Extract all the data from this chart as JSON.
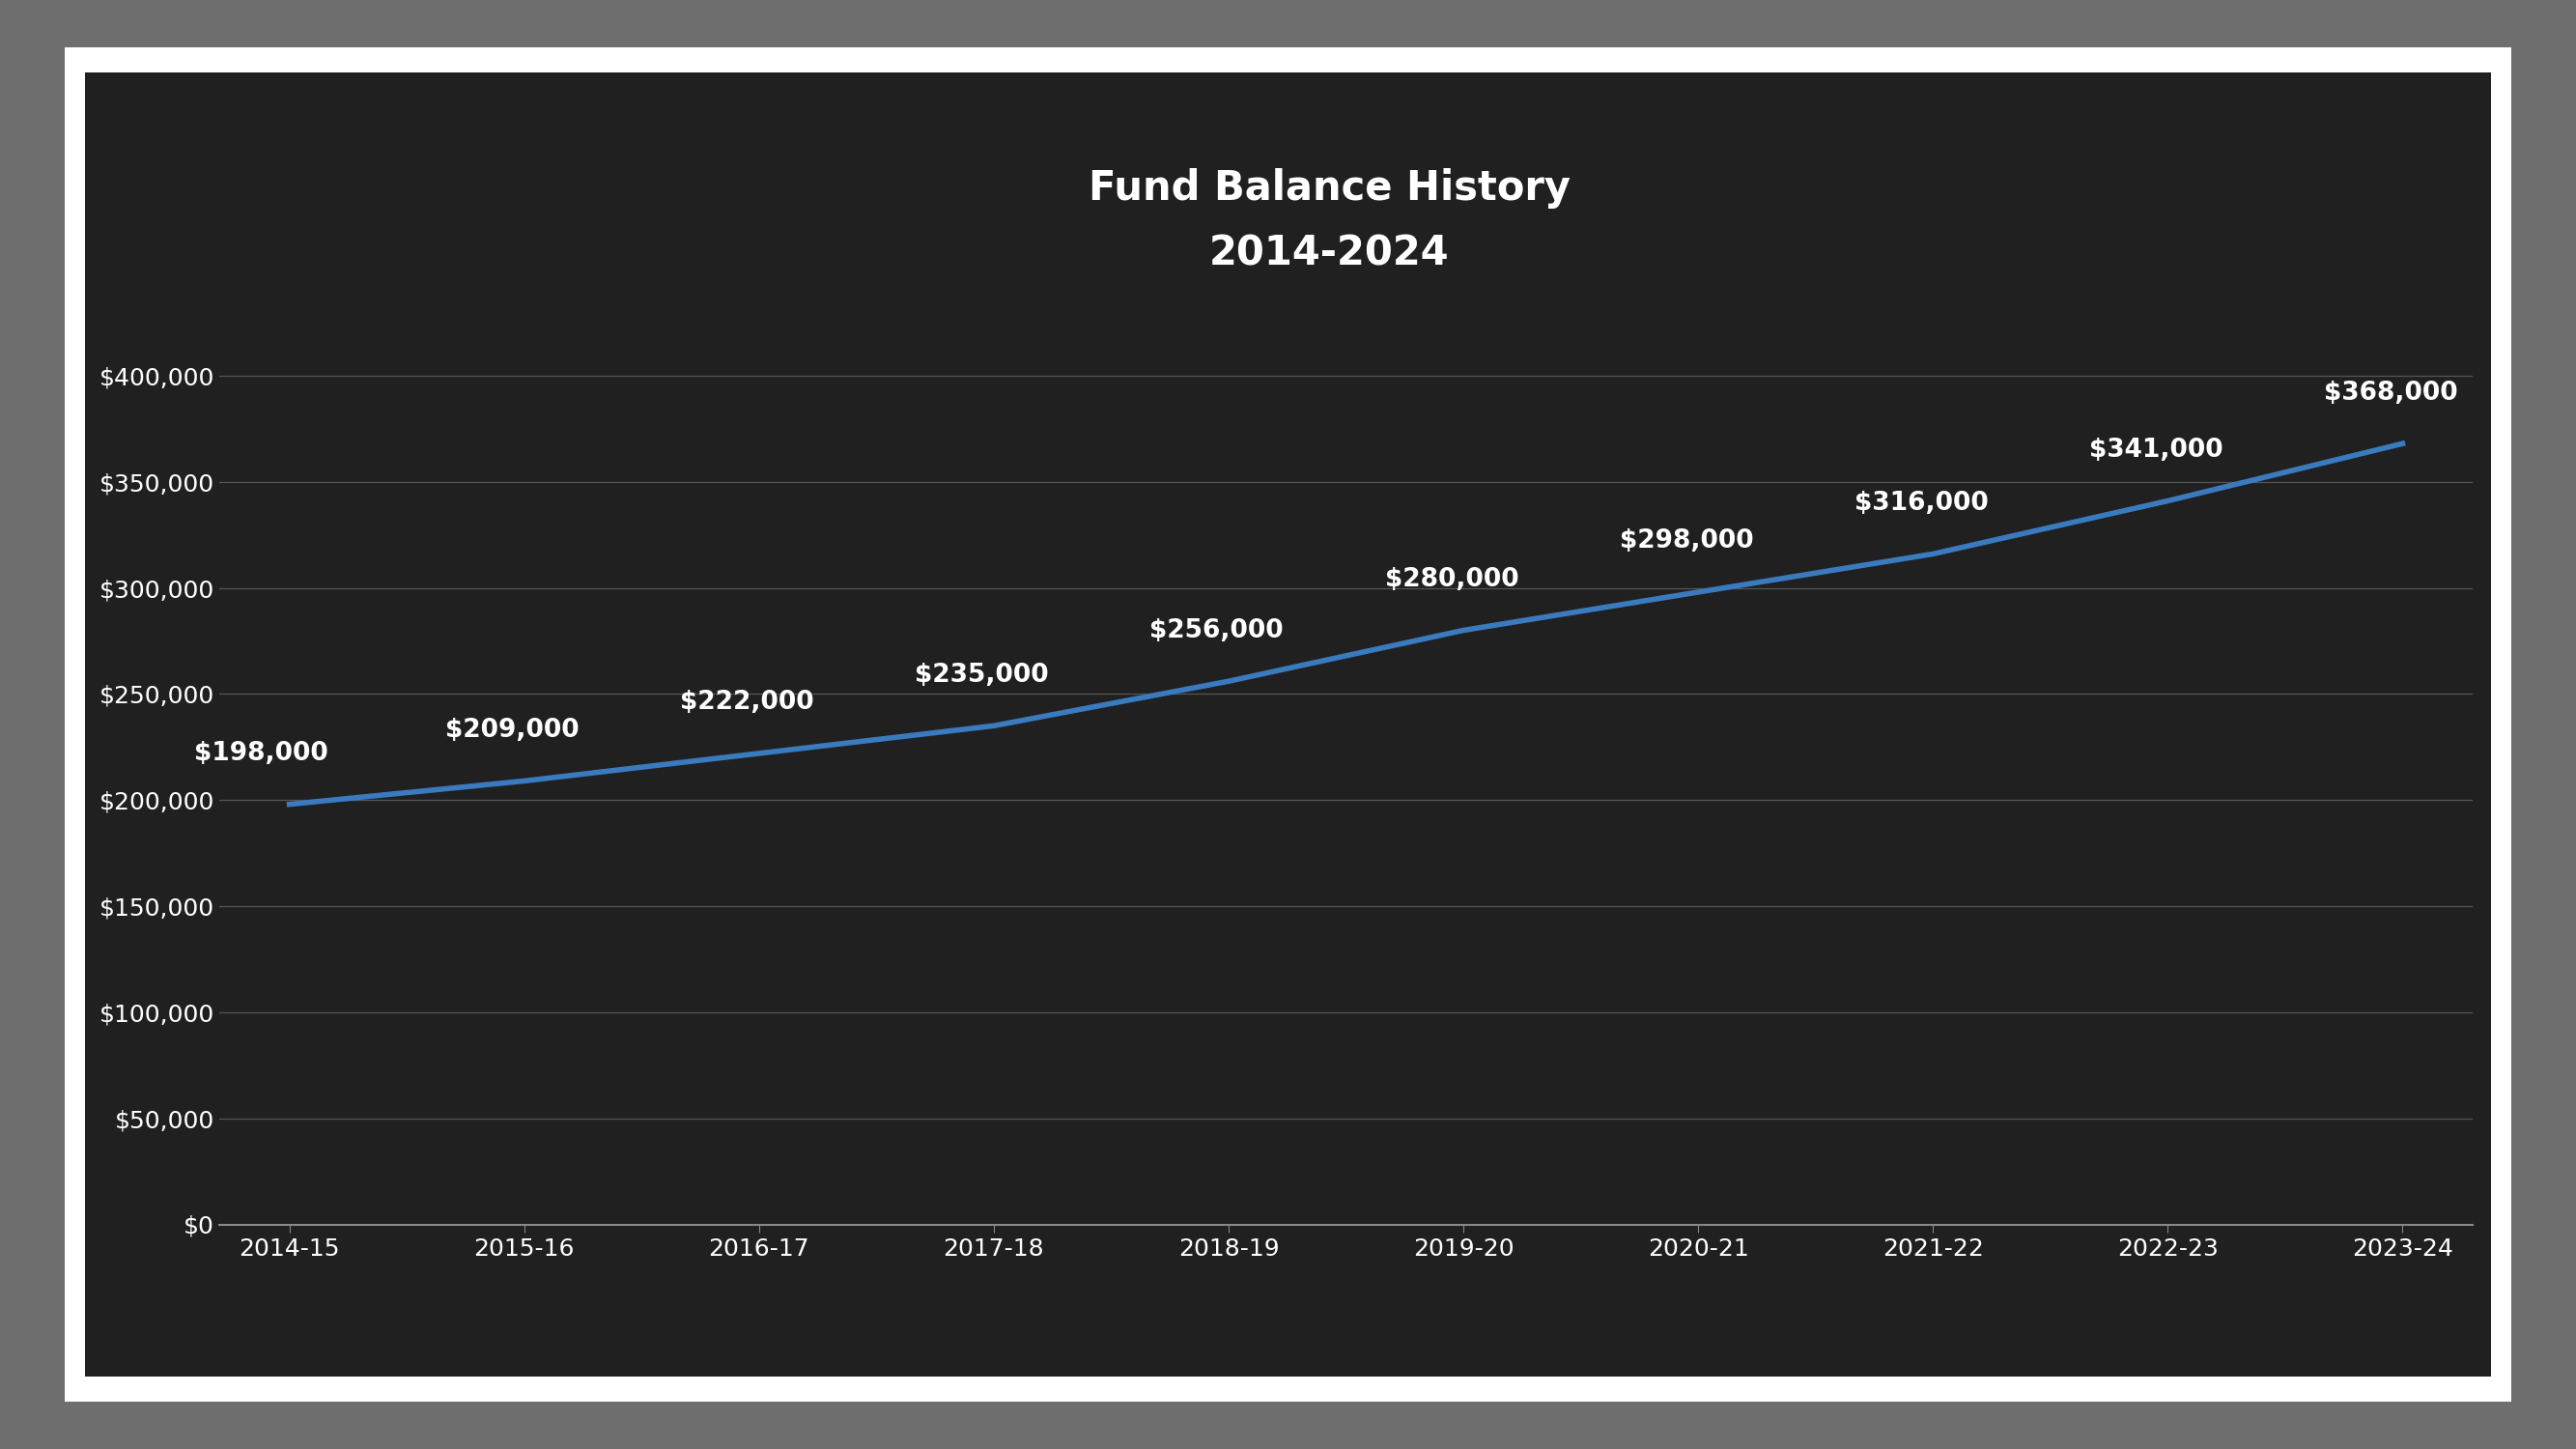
{
  "title_line1": "Fund Balance History",
  "title_line2": "2014-2024",
  "categories": [
    "2014-15",
    "2015-16",
    "2016-17",
    "2017-18",
    "2018-19",
    "2019-20",
    "2020-21",
    "2021-22",
    "2022-23",
    "2023-24"
  ],
  "values": [
    198000,
    209000,
    222000,
    235000,
    256000,
    280000,
    298000,
    316000,
    341000,
    368000
  ],
  "labels": [
    "$198,000",
    "$209,000",
    "$222,000",
    "$235,000",
    "$256,000",
    "$280,000",
    "$298,000",
    "$316,000",
    "$341,000",
    "$368,000"
  ],
  "line_color": "#3a7abf",
  "line_width": 4,
  "dark_bg_color": "#202020",
  "white_border_color": "#ffffff",
  "outer_bg_color": "#6e6e6e",
  "text_color": "#ffffff",
  "grid_color": "#555555",
  "yticks": [
    0,
    50000,
    100000,
    150000,
    200000,
    250000,
    300000,
    350000,
    400000
  ],
  "ytick_labels": [
    "$0",
    "$50,000",
    "$100,000",
    "$150,000",
    "$200,000",
    "$250,000",
    "$300,000",
    "$350,000",
    "$400,000"
  ],
  "ylim": [
    0,
    420000
  ],
  "title_fontsize": 30,
  "tick_fontsize": 18,
  "annotation_fontsize": 19,
  "white_border_lw": 8
}
